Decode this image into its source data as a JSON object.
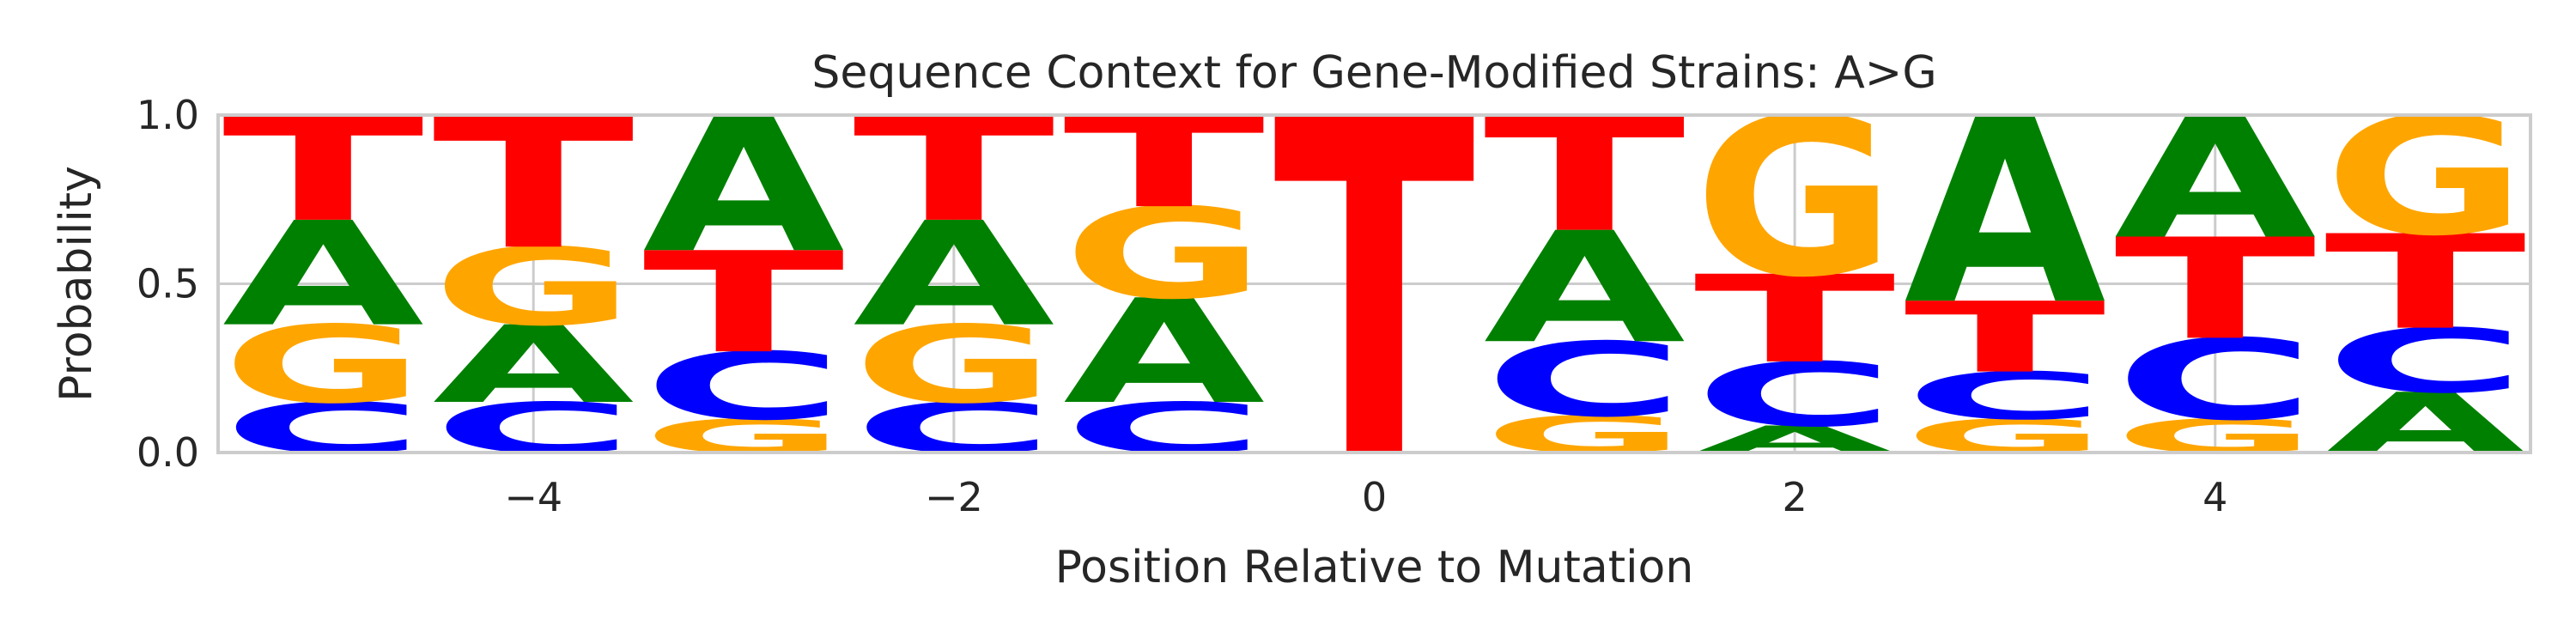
{
  "chart_data": {
    "type": "sequence-logo",
    "title": "Sequence Context for Gene-Modified Strains: A>G",
    "xlabel": "Position Relative to Mutation",
    "ylabel": "Probability",
    "xlim": [
      -5.5,
      5.5
    ],
    "ylim": [
      0,
      1
    ],
    "xticks": [
      -4,
      -2,
      0,
      2,
      4
    ],
    "xtick_labels": [
      "−4",
      "−2",
      "0",
      "2",
      "4"
    ],
    "yticks": [
      0,
      0.5,
      1
    ],
    "ytick_labels": [
      "0.0",
      "0.5",
      "1.0"
    ],
    "grid": true,
    "legend": "none",
    "letter_colors": {
      "A": "#008000",
      "C": "#0000ff",
      "G": "#ffa500",
      "T": "#ff0000"
    },
    "positions": [
      -5,
      -4,
      -3,
      -2,
      -1,
      0,
      1,
      2,
      3,
      4,
      5
    ],
    "stacks": [
      [
        {
          "letter": "C",
          "value": 0.15
        },
        {
          "letter": "G",
          "value": 0.23
        },
        {
          "letter": "A",
          "value": 0.31
        },
        {
          "letter": "T",
          "value": 0.31
        }
      ],
      [
        {
          "letter": "C",
          "value": 0.15
        },
        {
          "letter": "A",
          "value": 0.23
        },
        {
          "letter": "G",
          "value": 0.23
        },
        {
          "letter": "T",
          "value": 0.39
        }
      ],
      [
        {
          "letter": "G",
          "value": 0.1
        },
        {
          "letter": "C",
          "value": 0.2
        },
        {
          "letter": "T",
          "value": 0.3
        },
        {
          "letter": "A",
          "value": 0.4
        }
      ],
      [
        {
          "letter": "C",
          "value": 0.15
        },
        {
          "letter": "G",
          "value": 0.23
        },
        {
          "letter": "A",
          "value": 0.31
        },
        {
          "letter": "T",
          "value": 0.31
        }
      ],
      [
        {
          "letter": "C",
          "value": 0.15
        },
        {
          "letter": "A",
          "value": 0.31
        },
        {
          "letter": "G",
          "value": 0.27
        },
        {
          "letter": "T",
          "value": 0.27
        }
      ],
      [
        {
          "letter": "T",
          "value": 1.0
        }
      ],
      [
        {
          "letter": "G",
          "value": 0.11
        },
        {
          "letter": "C",
          "value": 0.22
        },
        {
          "letter": "A",
          "value": 0.33
        },
        {
          "letter": "T",
          "value": 0.34
        }
      ],
      [
        {
          "letter": "A",
          "value": 0.08
        },
        {
          "letter": "C",
          "value": 0.19
        },
        {
          "letter": "T",
          "value": 0.26
        },
        {
          "letter": "G",
          "value": 0.47
        }
      ],
      [
        {
          "letter": "G",
          "value": 0.1
        },
        {
          "letter": "C",
          "value": 0.14
        },
        {
          "letter": "T",
          "value": 0.21
        },
        {
          "letter": "A",
          "value": 0.55
        }
      ],
      [
        {
          "letter": "G",
          "value": 0.1
        },
        {
          "letter": "C",
          "value": 0.24
        },
        {
          "letter": "T",
          "value": 0.3
        },
        {
          "letter": "A",
          "value": 0.36
        }
      ],
      [
        {
          "letter": "A",
          "value": 0.18
        },
        {
          "letter": "C",
          "value": 0.19
        },
        {
          "letter": "T",
          "value": 0.28
        },
        {
          "letter": "G",
          "value": 0.35
        }
      ]
    ]
  }
}
